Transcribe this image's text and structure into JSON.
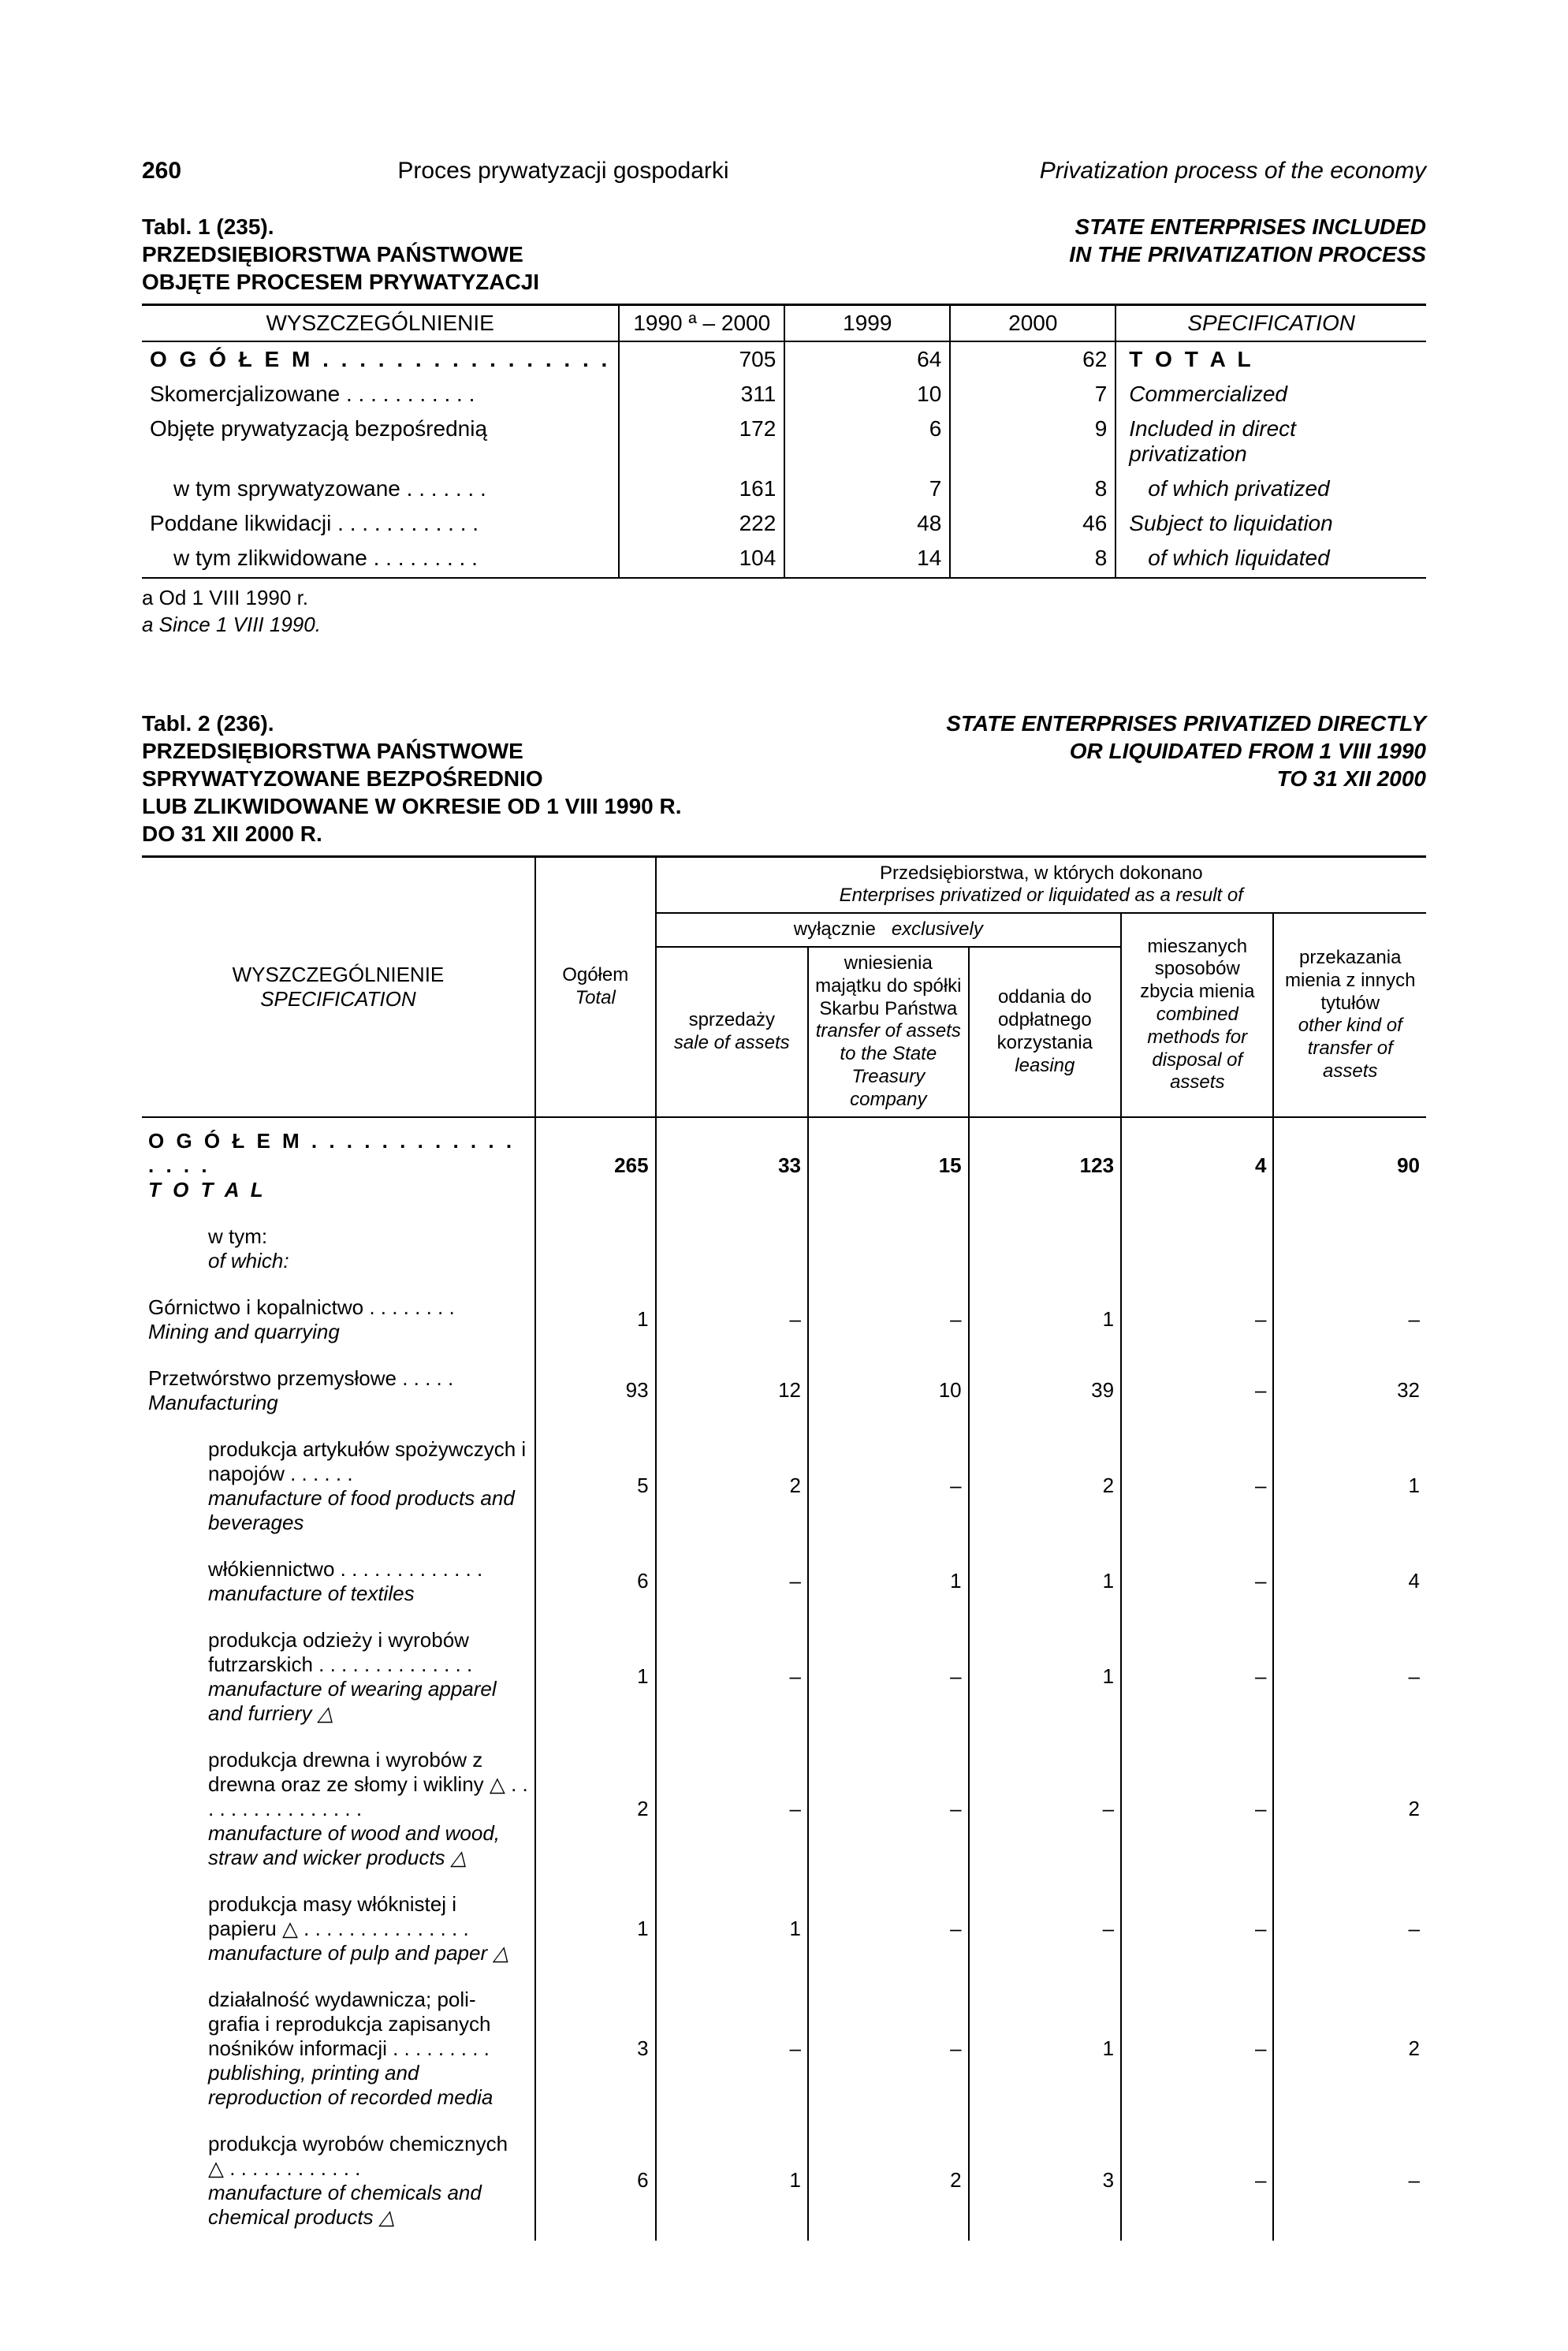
{
  "page": {
    "number": "260",
    "title_pl": "Proces prywatyzacji gospodarki",
    "title_en": "Privatization process of the economy"
  },
  "table1": {
    "caption_label": "Tabl. 1 (235).",
    "caption_pl_line1": "PRZEDSIĘBIORSTWA PAŃSTWOWE",
    "caption_pl_line2": "OBJĘTE PROCESEM PRYWATYZACJI",
    "caption_en_line1": "STATE ENTERPRISES INCLUDED",
    "caption_en_line2": "IN THE PRIVATIZATION PROCESS",
    "head": {
      "h1": "WYSZCZEGÓLNIENIE",
      "h2": "1990 ª – 2000",
      "h3": "1999",
      "h4": "2000",
      "h5": "SPECIFICATION"
    },
    "rows": [
      {
        "pl": "O G Ó Ł E M . . . . . . . . . . . . . . . .",
        "c1": "705",
        "c2": "64",
        "c3": "62",
        "en": "T O T A L",
        "bold": true,
        "indent": false,
        "ital_en": false
      },
      {
        "pl": "Skomercjalizowane . . . . . . . . . . .",
        "c1": "311",
        "c2": "10",
        "c3": "7",
        "en": "Commercialized",
        "bold": false,
        "indent": false,
        "ital_en": true
      },
      {
        "pl": "Objęte prywatyzacją bezpośrednią",
        "c1": "172",
        "c2": "6",
        "c3": "9",
        "en": "Included in direct privatization",
        "bold": false,
        "indent": false,
        "ital_en": true
      },
      {
        "pl": "w tym sprywatyzowane . . . . . . .",
        "c1": "161",
        "c2": "7",
        "c3": "8",
        "en": "of which privatized",
        "bold": false,
        "indent": true,
        "ital_en": true
      },
      {
        "pl": "Poddane likwidacji . . . . . . . . . . . .",
        "c1": "222",
        "c2": "48",
        "c3": "46",
        "en": "Subject to liquidation",
        "bold": false,
        "indent": false,
        "ital_en": true
      },
      {
        "pl": "w tym zlikwidowane . . . . . . . . .",
        "c1": "104",
        "c2": "14",
        "c3": "8",
        "en": "of which liquidated",
        "bold": false,
        "indent": true,
        "ital_en": true
      }
    ],
    "footnote_a_pl": "a  Od 1 VIII 1990 r.",
    "footnote_a_en": "a  Since 1 VIII 1990."
  },
  "table2": {
    "caption_label": "Tabl. 2 (236).",
    "caption_pl_line1": "PRZEDSIĘBIORSTWA PAŃSTWOWE",
    "caption_pl_line2": "SPRYWATYZOWANE BEZPOŚREDNIO",
    "caption_pl_line3": "LUB ZLIKWIDOWANE W OKRESIE OD 1 VIII 1990 R.",
    "caption_pl_line4": "DO 31 XII 2000 R.",
    "caption_en_line1": "STATE ENTERPRISES PRIVATIZED DIRECTLY",
    "caption_en_line2": "OR LIQUIDATED FROM 1 VIII 1990",
    "caption_en_line3": "TO 31 XII 2000",
    "head": {
      "spec_pl": "WYSZCZEGÓLNIENIE",
      "spec_en": "SPECIFICATION",
      "total_pl": "Ogółem",
      "total_en": "Total",
      "group_pl": "Przedsiębiorstwa, w których dokonano",
      "group_en": "Enterprises privatized or liquidated as a result of",
      "excl_pl": "wyłącznie",
      "excl_en": "exclusively",
      "c1_pl": "sprzedaży",
      "c1_en": "sale of assets",
      "c2_pl": "wniesienia majątku do spółki Skarbu Państwa",
      "c2_en": "transfer of assets to the State Treasury company",
      "c3_pl": "oddania do odpłatnego korzystania",
      "c3_en": "leasing",
      "c4_pl": "mieszanych sposobów zbycia mienia",
      "c4_en": "combined methods for disposal of assets",
      "c5_pl": "przekazania mienia z innych tytułów",
      "c5_en": "other kind of transfer of assets"
    },
    "rows": [
      {
        "pl": "O G Ó Ł E M . . . . . . . . . . . . . . . .",
        "en": "T O T A L",
        "c0": "265",
        "c1": "33",
        "c2": "15",
        "c3": "123",
        "c4": "4",
        "c5": "90",
        "bold": true,
        "indent": false
      },
      {
        "pl": "w tym:",
        "en": "of which:",
        "c0": "",
        "c1": "",
        "c2": "",
        "c3": "",
        "c4": "",
        "c5": "",
        "bold": false,
        "indent": true
      },
      {
        "pl": "Górnictwo i kopalnictwo . . . . . . . .",
        "en": "Mining and quarrying",
        "c0": "1",
        "c1": "–",
        "c2": "–",
        "c3": "1",
        "c4": "–",
        "c5": "–",
        "bold": false,
        "indent": false
      },
      {
        "pl": "Przetwórstwo przemysłowe . . . . .",
        "en": "Manufacturing",
        "c0": "93",
        "c1": "12",
        "c2": "10",
        "c3": "39",
        "c4": "–",
        "c5": "32",
        "bold": false,
        "indent": false
      },
      {
        "pl": "produkcja artykułów spożywczych i napojów . . . . . .",
        "en": "manufacture of food products and beverages",
        "c0": "5",
        "c1": "2",
        "c2": "–",
        "c3": "2",
        "c4": "–",
        "c5": "1",
        "bold": false,
        "indent": true
      },
      {
        "pl": "włókiennictwo . . . . . . . . . . . . .",
        "en": "manufacture of textiles",
        "c0": "6",
        "c1": "–",
        "c2": "1",
        "c3": "1",
        "c4": "–",
        "c5": "4",
        "bold": false,
        "indent": true
      },
      {
        "pl": "produkcja odzieży i wyrobów futrzarskich . . . . . . . . . . . . . .",
        "en": "manufacture of wearing apparel and furriery △",
        "c0": "1",
        "c1": "–",
        "c2": "–",
        "c3": "1",
        "c4": "–",
        "c5": "–",
        "bold": false,
        "indent": true
      },
      {
        "pl": "produkcja drewna i wyrobów z drewna oraz ze słomy i wikliny △ . . . . . . . . . . . . . . . .",
        "en": "manufacture of wood and wood, straw and wicker products △",
        "c0": "2",
        "c1": "–",
        "c2": "–",
        "c3": "–",
        "c4": "–",
        "c5": "2",
        "bold": false,
        "indent": true
      },
      {
        "pl": "produkcja masy włóknistej i papieru △ . . . . . . . . . . . . . . .",
        "en": "manufacture of pulp and paper △",
        "c0": "1",
        "c1": "1",
        "c2": "–",
        "c3": "–",
        "c4": "–",
        "c5": "–",
        "bold": false,
        "indent": true
      },
      {
        "pl": "działalność wydawnicza; poli- grafia i reprodukcja zapisanych nośników informacji . . . . . . . . .",
        "en": "publishing, printing and reproduction of recorded media",
        "c0": "3",
        "c1": "–",
        "c2": "–",
        "c3": "1",
        "c4": "–",
        "c5": "2",
        "bold": false,
        "indent": true
      },
      {
        "pl": "produkcja wyrobów chemicznych △ . . . . . . . . . . . .",
        "en": "manufacture of chemicals and chemical products △",
        "c0": "6",
        "c1": "1",
        "c2": "2",
        "c3": "3",
        "c4": "–",
        "c5": "–",
        "bold": false,
        "indent": true
      }
    ]
  }
}
